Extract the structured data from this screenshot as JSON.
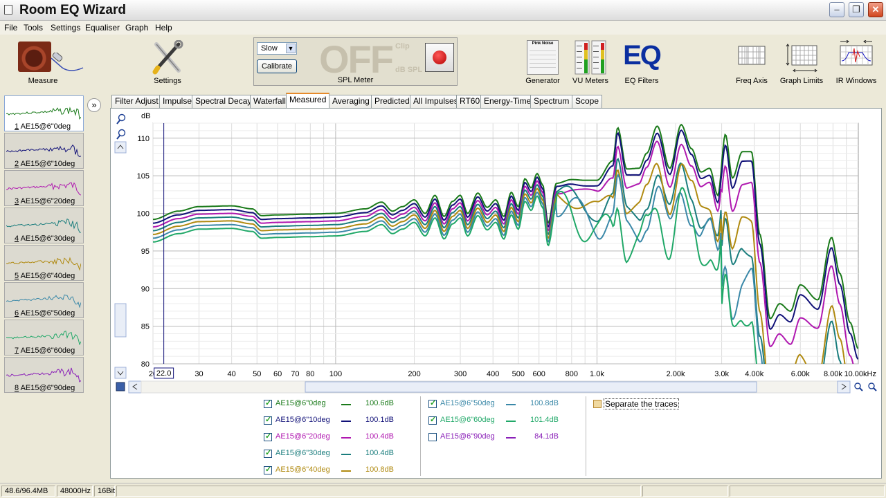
{
  "window": {
    "title": "Room EQ Wizard"
  },
  "menu": [
    "File",
    "Tools",
    "Settings",
    "Equaliser",
    "Graph",
    "Help"
  ],
  "toolbar": {
    "measure": "Measure",
    "settings": "Settings",
    "spl": {
      "speed": "Slow",
      "calibrate": "Calibrate",
      "display": "OFF",
      "clip": "Clip",
      "unit": "dB SPL",
      "label": "SPL Meter"
    },
    "generator": "Generator",
    "generator_panel_title": "Pink Noise",
    "vu_meters": "VU Meters",
    "eq_filters": "EQ Filters",
    "eq_logo": "EQ",
    "freq_axis": "Freq Axis",
    "graph_limits": "Graph Limits",
    "ir_windows": "IR Windows"
  },
  "tabs": [
    "Filter Adjust",
    "Impulse",
    "Spectral Decay",
    "Waterfall",
    "Measured",
    "Averaging",
    "Predicted",
    "All Impulses",
    "RT60",
    "Energy-Time",
    "Spectrum",
    "Scope"
  ],
  "active_tab": "Measured",
  "measurements": [
    {
      "index": "1",
      "name": "AE15@6\"0deg",
      "color": "#1a7a1a",
      "level": "100.6dB",
      "checked": true
    },
    {
      "index": "2",
      "name": "AE15@6\"10deg",
      "color": "#101078",
      "level": "100.1dB",
      "checked": true
    },
    {
      "index": "3",
      "name": "AE15@6\"20deg",
      "color": "#b018b0",
      "level": "100.4dB",
      "checked": true
    },
    {
      "index": "4",
      "name": "AE15@6\"30deg",
      "color": "#1a7d7d",
      "level": "100.4dB",
      "checked": true
    },
    {
      "index": "5",
      "name": "AE15@6\"40deg",
      "color": "#b08a10",
      "level": "100.8dB",
      "checked": true
    },
    {
      "index": "6",
      "name": "AE15@6\"50deg",
      "color": "#3a88a8",
      "level": "100.8dB",
      "checked": true
    },
    {
      "index": "7",
      "name": "AE15@6\"60deg",
      "color": "#20a868",
      "level": "101.4dB",
      "checked": true
    },
    {
      "index": "8",
      "name": "AE15@6\"90deg",
      "color": "#8a20b8",
      "level": "84.1dB",
      "checked": false
    }
  ],
  "legend": {
    "separate_traces": "Separate the traces"
  },
  "chart_data": {
    "type": "line",
    "ylabel": "dB",
    "ylim": [
      80,
      112
    ],
    "yticks": [
      80,
      85,
      90,
      95,
      100,
      105,
      110
    ],
    "xlim": [
      20,
      10000
    ],
    "xscale": "log",
    "xticks": [
      "20",
      "30",
      "40",
      "50",
      "60",
      "70",
      "80",
      "100",
      "200",
      "300",
      "400",
      "500",
      "600",
      "800",
      "1.0k",
      "2.00k",
      "3.0k",
      "4.00k",
      "6.00k",
      "8.00k",
      "10.00kHz"
    ],
    "cursor_label": "22.0",
    "cursor_x": 22,
    "series": [
      {
        "name": "AE15@6\"0deg",
        "color": "#1a7a1a",
        "offset": 1.5,
        "hf": 1.0
      },
      {
        "name": "AE15@6\"10deg",
        "color": "#101078",
        "offset": 1.0,
        "hf": 0.95
      },
      {
        "name": "AE15@6\"20deg",
        "color": "#b018b0",
        "offset": 0.5,
        "hf": 0.82
      },
      {
        "name": "AE15@6\"30deg",
        "color": "#1a7d7d",
        "offset": 0.0,
        "hf": 0.35
      },
      {
        "name": "AE15@6\"40deg",
        "color": "#b08a10",
        "offset": -0.5,
        "hf": 0.55
      },
      {
        "name": "AE15@6\"50deg",
        "color": "#3a88a8",
        "offset": -1.0,
        "hf": 0.15
      },
      {
        "name": "AE15@6\"60deg",
        "color": "#20a868",
        "offset": -1.5,
        "hf": -0.05
      }
    ]
  },
  "status": {
    "memory": "48.6/96.4MB",
    "sample_rate": "48000Hz",
    "bits": "16Bit"
  }
}
